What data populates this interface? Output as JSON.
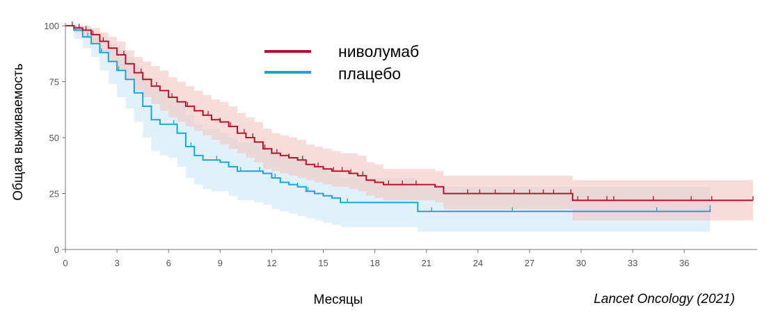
{
  "chart_data": {
    "type": "line",
    "subtype": "kaplan-meier",
    "xlabel": "Месяцы",
    "ylabel": "Общая выживаемость",
    "xlim": [
      0,
      40
    ],
    "ylim": [
      0,
      100
    ],
    "xticks": [
      "0",
      "3",
      "6",
      "9",
      "12",
      "15",
      "18",
      "21",
      "24",
      "27",
      "30",
      "33",
      "36"
    ],
    "yticks": [
      "0",
      "25",
      "50",
      "75",
      "100"
    ],
    "grid": false,
    "legend_position": "top-center",
    "source": "Lancet Oncology (2021)",
    "series": [
      {
        "name": "ниволумаб",
        "color": "#b5122b",
        "band_color": "#f2c6c4",
        "x": [
          0,
          0.5,
          1,
          1.5,
          2,
          2.5,
          3,
          3.5,
          4,
          4.5,
          5,
          5.5,
          6,
          6.5,
          7,
          7.5,
          8,
          8.5,
          9,
          9.5,
          10,
          10.5,
          11,
          11.5,
          12,
          12.5,
          13,
          13.5,
          14,
          14.5,
          15,
          15.5,
          16,
          16.5,
          17,
          17.5,
          18,
          18.5,
          19,
          20,
          21,
          21.5,
          22,
          23,
          24,
          25,
          26,
          27,
          28,
          29,
          29.5,
          30,
          31,
          32,
          33,
          34,
          35,
          36,
          37,
          38,
          39,
          40
        ],
        "y": [
          100,
          99,
          98,
          96,
          93,
          90,
          87,
          83,
          79,
          76,
          73,
          71,
          68,
          66,
          64,
          62,
          60,
          58,
          57,
          55,
          52,
          50,
          48,
          45,
          43,
          42,
          41,
          40,
          38,
          37,
          36,
          35,
          35,
          34,
          33,
          31,
          30,
          29,
          29,
          29,
          29,
          28,
          25,
          25,
          25,
          25,
          25,
          25,
          25,
          25,
          22,
          22,
          22,
          22,
          22,
          22,
          22,
          22,
          22,
          22,
          22,
          22
        ],
        "lower": [
          100,
          97,
          95,
          92,
          88,
          84,
          80,
          76,
          71,
          68,
          65,
          62,
          59,
          57,
          55,
          53,
          51,
          49,
          47,
          45,
          43,
          41,
          39,
          36,
          35,
          34,
          33,
          32,
          31,
          30,
          29,
          28,
          28,
          27,
          26,
          24,
          23,
          22,
          22,
          22,
          22,
          21,
          18,
          18,
          18,
          18,
          18,
          18,
          18,
          18,
          13,
          13,
          13,
          13,
          13,
          13,
          13,
          13,
          13,
          13,
          13,
          13
        ],
        "upper": [
          100,
          100,
          100,
          99,
          97,
          95,
          93,
          89,
          86,
          84,
          82,
          80,
          77,
          75,
          73,
          71,
          69,
          67,
          66,
          64,
          61,
          59,
          57,
          54,
          52,
          51,
          50,
          49,
          47,
          46,
          45,
          44,
          43,
          43,
          42,
          39,
          38,
          36,
          36,
          36,
          36,
          35,
          33,
          33,
          33,
          33,
          33,
          33,
          33,
          33,
          31,
          31,
          31,
          31,
          31,
          31,
          31,
          31,
          31,
          31,
          31,
          31
        ],
        "censor_x": [
          0.4,
          0.8,
          1.2,
          1.6,
          2.2,
          3.4,
          4.4,
          5.3,
          6.2,
          7.1,
          8.3,
          9.0,
          9.6,
          10.4,
          10.9,
          11.6,
          12.3,
          13.0,
          13.8,
          14.7,
          15.6,
          16.1,
          16.6,
          17.3,
          18.8,
          19.6,
          20.4,
          23.4,
          24.1,
          25.0,
          26.1,
          27.0,
          27.8,
          28.4,
          29.4,
          29.8,
          30.4,
          31.5,
          31.9,
          34.2,
          36.4,
          37.6,
          40
        ]
      },
      {
        "name": "плацебо",
        "color": "#1aa5d6",
        "band_color": "#cfe9f6",
        "x": [
          0,
          0.5,
          1,
          1.5,
          2,
          2.5,
          3,
          3.5,
          4,
          4.5,
          5,
          5.5,
          6,
          6.5,
          7,
          7.5,
          8,
          8.5,
          9,
          9.5,
          10,
          10.5,
          11,
          11.5,
          12,
          12.5,
          13,
          13.5,
          14,
          14.5,
          15,
          15.5,
          16,
          16.5,
          17,
          17.5,
          18,
          19,
          20,
          20.5,
          21,
          22,
          23,
          24,
          25,
          26,
          27,
          28,
          29,
          30,
          31,
          32,
          33,
          34,
          35,
          36,
          37,
          37.5
        ],
        "y": [
          100,
          98,
          95,
          92,
          88,
          84,
          80,
          76,
          70,
          64,
          58,
          56,
          56,
          52,
          46,
          42,
          40,
          40,
          39,
          37,
          35,
          35,
          35,
          34,
          32,
          30,
          29,
          28,
          26,
          25,
          24,
          23,
          21,
          21,
          21,
          21,
          21,
          21,
          21,
          17,
          17,
          17,
          17,
          17,
          17,
          17,
          17,
          17,
          17,
          17,
          17,
          17,
          17,
          17,
          17,
          17,
          17,
          18
        ],
        "lower": [
          100,
          94,
          90,
          86,
          80,
          74,
          68,
          63,
          57,
          50,
          44,
          42,
          41,
          37,
          32,
          29,
          27,
          26,
          26,
          24,
          22,
          22,
          21,
          20,
          18,
          17,
          16,
          15,
          14,
          13,
          12,
          11,
          10,
          10,
          10,
          10,
          10,
          10,
          10,
          8,
          8,
          8,
          8,
          8,
          8,
          8,
          8,
          8,
          8,
          8,
          8,
          8,
          8,
          8,
          8,
          8,
          8,
          8
        ],
        "upper": [
          100,
          100,
          99,
          97,
          94,
          92,
          89,
          86,
          82,
          77,
          72,
          70,
          69,
          66,
          60,
          56,
          54,
          54,
          52,
          50,
          48,
          48,
          47,
          46,
          44,
          42,
          41,
          40,
          38,
          36,
          35,
          34,
          32,
          32,
          32,
          32,
          32,
          32,
          32,
          28,
          28,
          28,
          28,
          28,
          28,
          28,
          28,
          28,
          28,
          28,
          28,
          28,
          28,
          28,
          28,
          28,
          28,
          28
        ],
        "censor_x": [
          0.6,
          1.3,
          2.1,
          3.1,
          4.5,
          6.3,
          7.3,
          8.8,
          10.2,
          11.3,
          12.2,
          13.5,
          14.1,
          16.0,
          16.4,
          21.3,
          26.0,
          34.4,
          37.5
        ]
      }
    ]
  },
  "legend": {
    "items": [
      {
        "label": "ниволумаб",
        "color": "#b5122b"
      },
      {
        "label": "плацебо",
        "color": "#1aa5d6"
      }
    ]
  },
  "source_text": "Lancet Oncology (2021)",
  "axis_color": "#777777"
}
